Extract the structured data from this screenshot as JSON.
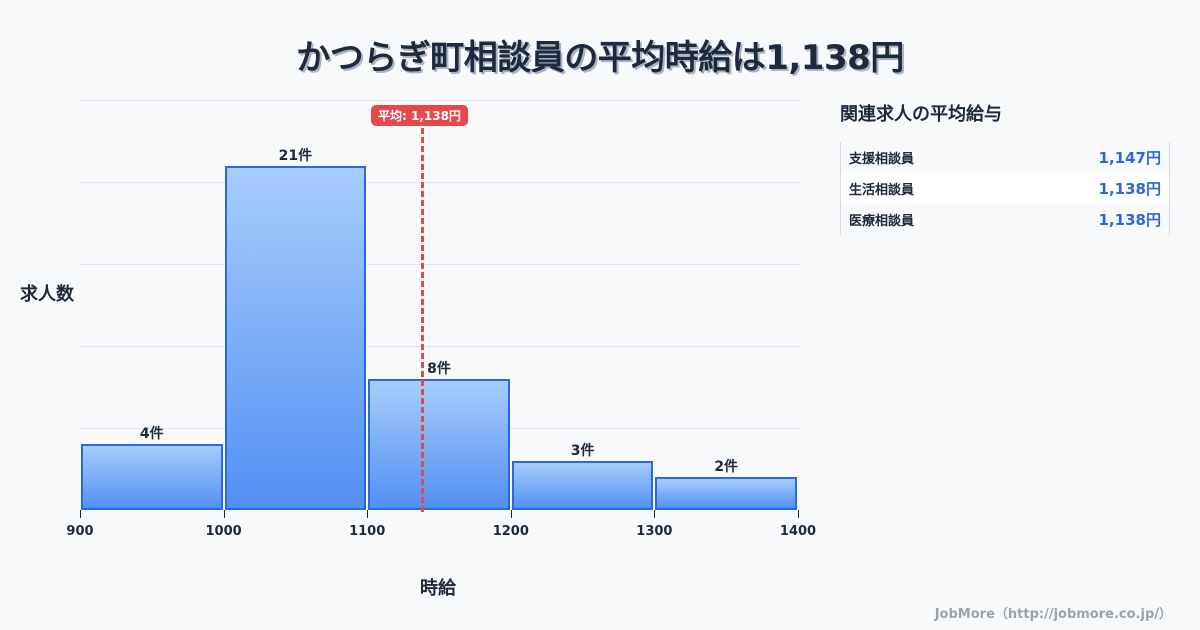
{
  "title": "かつらぎ町相談員の平均時給は1,138円",
  "chart_data": {
    "type": "bar",
    "title": "かつらぎ町相談員の平均時給は1,138円",
    "xlabel": "時給",
    "ylabel": "求人数",
    "categories": [
      "900-1000",
      "1000-1100",
      "1100-1200",
      "1200-1300",
      "1300-1400"
    ],
    "values": [
      4,
      21,
      8,
      3,
      2
    ],
    "value_labels": [
      "4件",
      "21件",
      "8件",
      "3件",
      "2件"
    ],
    "x_ticks": [
      "900",
      "1000",
      "1100",
      "1200",
      "1300",
      "1400"
    ],
    "xlim": [
      900,
      1400
    ],
    "ylim": [
      0,
      25
    ],
    "grid": true,
    "mean": 1138,
    "mean_label": "平均: 1,138円"
  },
  "sidebar": {
    "heading": "関連求人の平均給与",
    "items": [
      {
        "name": "支援相談員",
        "value": "1,147円"
      },
      {
        "name": "生活相談員",
        "value": "1,138円"
      },
      {
        "name": "医療相談員",
        "value": "1,138円"
      }
    ]
  },
  "footer": "JobMore（http://jobmore.co.jp/）"
}
